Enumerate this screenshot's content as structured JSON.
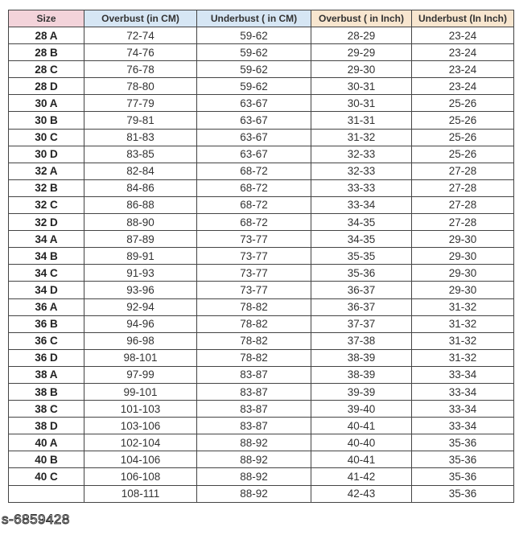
{
  "colors": {
    "size_header": "#f3d3da",
    "cm_header": "#d6e6f4",
    "inch_header": "#f8e6cf"
  },
  "headers": [
    "Size",
    "Overbust (in CM)",
    "Underbust ( in CM)",
    "Overbust ( in Inch)",
    "Underbust (In Inch)"
  ],
  "rows": [
    [
      "28 A",
      "72-74",
      "59-62",
      "28-29",
      "23-24"
    ],
    [
      "28 B",
      "74-76",
      "59-62",
      "29-29",
      "23-24"
    ],
    [
      "28 C",
      "76-78",
      "59-62",
      "29-30",
      "23-24"
    ],
    [
      "28 D",
      "78-80",
      "59-62",
      "30-31",
      "23-24"
    ],
    [
      "30 A",
      "77-79",
      "63-67",
      "30-31",
      "25-26"
    ],
    [
      "30 B",
      "79-81",
      "63-67",
      "31-31",
      "25-26"
    ],
    [
      "30 C",
      "81-83",
      "63-67",
      "31-32",
      "25-26"
    ],
    [
      "30 D",
      "83-85",
      "63-67",
      "32-33",
      "25-26"
    ],
    [
      "32 A",
      "82-84",
      "68-72",
      "32-33",
      "27-28"
    ],
    [
      "32 B",
      "84-86",
      "68-72",
      "33-33",
      "27-28"
    ],
    [
      "32 C",
      "86-88",
      "68-72",
      "33-34",
      "27-28"
    ],
    [
      "32 D",
      "88-90",
      "68-72",
      "34-35",
      "27-28"
    ],
    [
      "34 A",
      "87-89",
      "73-77",
      "34-35",
      "29-30"
    ],
    [
      "34 B",
      "89-91",
      "73-77",
      "35-35",
      "29-30"
    ],
    [
      "34 C",
      "91-93",
      "73-77",
      "35-36",
      "29-30"
    ],
    [
      "34 D",
      "93-96",
      "73-77",
      "36-37",
      "29-30"
    ],
    [
      "36 A",
      "92-94",
      "78-82",
      "36-37",
      "31-32"
    ],
    [
      "36 B",
      "94-96",
      "78-82",
      "37-37",
      "31-32"
    ],
    [
      "36 C",
      "96-98",
      "78-82",
      "37-38",
      "31-32"
    ],
    [
      "36 D",
      "98-101",
      "78-82",
      "38-39",
      "31-32"
    ],
    [
      "38 A",
      "97-99",
      "83-87",
      "38-39",
      "33-34"
    ],
    [
      "38 B",
      "99-101",
      "83-87",
      "39-39",
      "33-34"
    ],
    [
      "38 C",
      "101-103",
      "83-87",
      "39-40",
      "33-34"
    ],
    [
      "38 D",
      "103-106",
      "83-87",
      "40-41",
      "33-34"
    ],
    [
      "40 A",
      "102-104",
      "88-92",
      "40-40",
      "35-36"
    ],
    [
      "40 B",
      "104-106",
      "88-92",
      "40-41",
      "35-36"
    ],
    [
      "40 C",
      "106-108",
      "88-92",
      "41-42",
      "35-36"
    ],
    [
      "",
      "108-111",
      "88-92",
      "42-43",
      "35-36"
    ]
  ],
  "watermark": "s-6859428"
}
